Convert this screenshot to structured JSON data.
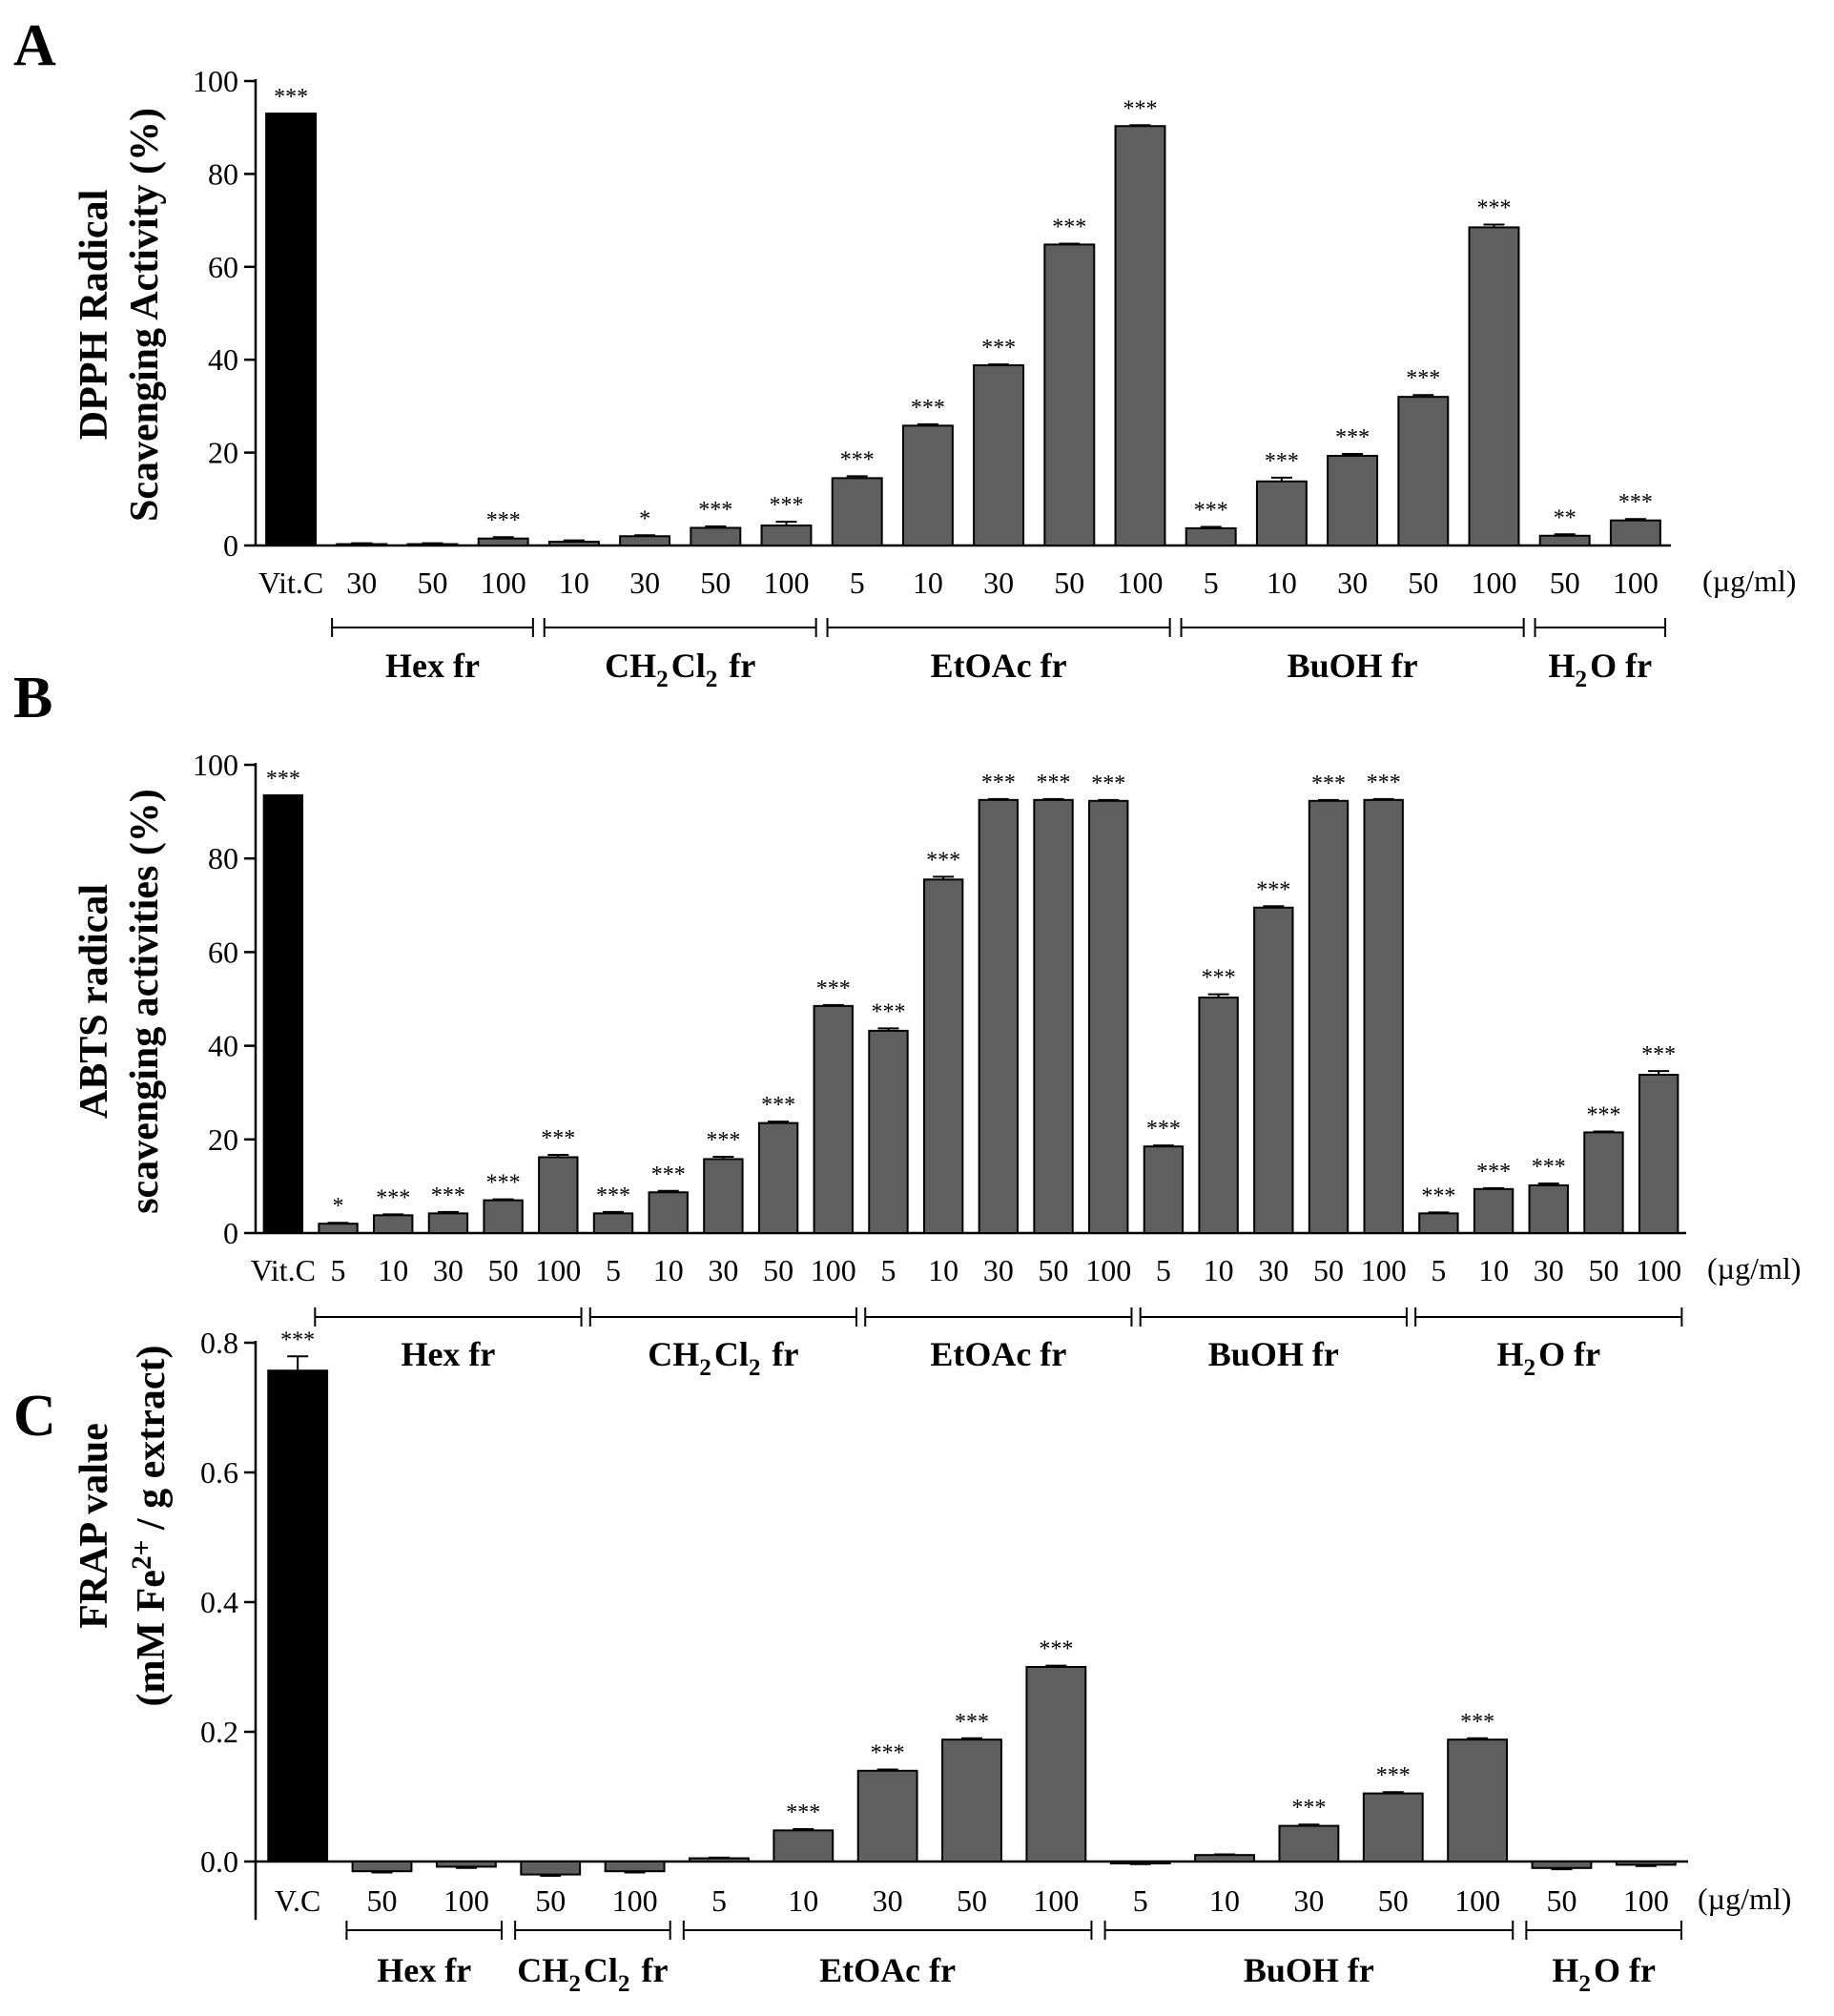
{
  "figure": {
    "title": ""
  },
  "chart_data": [
    {
      "type": "bar",
      "panel": "A",
      "title": "",
      "ylabel": [
        "DPPH Radical",
        "Scavenging Activity (%)"
      ],
      "xunit": "(µg/ml)",
      "ylim": [
        0,
        100
      ],
      "yticks": [
        "0",
        "20",
        "40",
        "60",
        "80",
        "100"
      ],
      "categories": [
        "Vit.C",
        "30",
        "50",
        "100",
        "10",
        "30",
        "50",
        "100",
        "5",
        "10",
        "30",
        "50",
        "100",
        "5",
        "10",
        "30",
        "50",
        "100",
        "50",
        "100"
      ],
      "values": [
        93,
        0.3,
        0.3,
        1.5,
        0.8,
        2,
        3.8,
        4.3,
        14.5,
        25.8,
        38.8,
        64.8,
        90.3,
        3.7,
        13.8,
        19.3,
        32,
        68.5,
        2.1,
        5.4
      ],
      "errors": [
        0,
        0.2,
        0.2,
        0.3,
        0.3,
        0.2,
        0.3,
        0.8,
        0.4,
        0.3,
        0.2,
        0.2,
        0.2,
        0.3,
        0.8,
        0.4,
        0.4,
        0.6,
        0.3,
        0.3
      ],
      "significance": [
        "***",
        "",
        "",
        "***",
        "",
        "*",
        "***",
        "***",
        "***",
        "***",
        "***",
        "***",
        "***",
        "***",
        "***",
        "***",
        "***",
        "***",
        "**",
        "***"
      ],
      "highlight_index": 0,
      "groups": [
        {
          "label": "Hex fr",
          "start": 1,
          "end": 3
        },
        {
          "label": "CH2Cl2 fr",
          "start": 4,
          "end": 7
        },
        {
          "label": "EtOAc fr",
          "start": 8,
          "end": 12
        },
        {
          "label": "BuOH fr",
          "start": 13,
          "end": 17
        },
        {
          "label": "H2O fr",
          "start": 18,
          "end": 19
        }
      ]
    },
    {
      "type": "bar",
      "panel": "B",
      "title": "",
      "ylabel": [
        "ABTS radical",
        "scavenging activities (%)"
      ],
      "xunit": "(µg/ml)",
      "ylim": [
        0,
        100
      ],
      "yticks": [
        "0",
        "20",
        "40",
        "60",
        "80",
        "100"
      ],
      "categories": [
        "Vit.C",
        "5",
        "10",
        "30",
        "50",
        "100",
        "5",
        "10",
        "30",
        "50",
        "100",
        "5",
        "10",
        "30",
        "50",
        "100",
        "5",
        "10",
        "30",
        "50",
        "100",
        "5",
        "10",
        "30",
        "50",
        "100"
      ],
      "values": [
        93.5,
        2,
        3.8,
        4.2,
        7,
        16.2,
        4.2,
        8.7,
        15.8,
        23.5,
        48.5,
        43.2,
        75.5,
        92.5,
        92.5,
        92.3,
        18.5,
        50.3,
        69.5,
        92.3,
        92.5,
        4.2,
        9.4,
        10.2,
        21.5,
        33.8
      ],
      "errors": [
        0,
        0.2,
        0.2,
        0.3,
        0.2,
        0.5,
        0.3,
        0.3,
        0.5,
        0.3,
        0.2,
        0.5,
        0.6,
        0.2,
        0.2,
        0.2,
        0.2,
        0.7,
        0.3,
        0.2,
        0.2,
        0.2,
        0.2,
        0.4,
        0.2,
        0.8
      ],
      "significance": [
        "***",
        "*",
        "***",
        "***",
        "***",
        "***",
        "***",
        "***",
        "***",
        "***",
        "***",
        "***",
        "***",
        "***",
        "***",
        "***",
        "***",
        "***",
        "***",
        "***",
        "***",
        "***",
        "***",
        "***",
        "***",
        "***"
      ],
      "highlight_index": 0,
      "groups": [
        {
          "label": "Hex fr",
          "start": 1,
          "end": 5
        },
        {
          "label": "CH2Cl2 fr",
          "start": 6,
          "end": 10
        },
        {
          "label": "EtOAc fr",
          "start": 11,
          "end": 15
        },
        {
          "label": "BuOH fr",
          "start": 16,
          "end": 20
        },
        {
          "label": "H2O fr",
          "start": 21,
          "end": 25
        }
      ]
    },
    {
      "type": "bar",
      "panel": "C",
      "title": "",
      "ylabel": [
        "FRAP value",
        "(mM Fe2+ / g extract)"
      ],
      "xunit": "(µg/ml)",
      "ylim": [
        -0.09,
        0.8
      ],
      "yticks": [
        "0.0",
        "0.2",
        "0.4",
        "0.6",
        "0.8"
      ],
      "categories": [
        "V.C",
        "50",
        "100",
        "50",
        "100",
        "5",
        "10",
        "30",
        "50",
        "100",
        "5",
        "10",
        "30",
        "50",
        "100",
        "50",
        "100"
      ],
      "values": [
        0.757,
        -0.015,
        -0.008,
        -0.02,
        -0.015,
        0.005,
        0.048,
        0.14,
        0.188,
        0.3,
        -0.003,
        0.01,
        0.055,
        0.105,
        0.188,
        -0.01,
        -0.005
      ],
      "errors": [
        0.022,
        0.002,
        0.002,
        0.002,
        0.002,
        0.001,
        0.002,
        0.002,
        0.002,
        0.002,
        0.001,
        0.001,
        0.002,
        0.002,
        0.002,
        0.002,
        0.002
      ],
      "significance": [
        "***",
        "",
        "",
        "",
        "",
        "",
        "***",
        "***",
        "***",
        "***",
        "",
        "",
        "***",
        "***",
        "***",
        "",
        ""
      ],
      "highlight_index": 0,
      "groups": [
        {
          "label": "Hex fr",
          "start": 1,
          "end": 2
        },
        {
          "label": "CH2Cl2 fr",
          "start": 3,
          "end": 4
        },
        {
          "label": "EtOAc fr",
          "start": 5,
          "end": 9
        },
        {
          "label": "BuOH fr",
          "start": 10,
          "end": 14
        },
        {
          "label": "H2O fr",
          "start": 15,
          "end": 16
        }
      ]
    }
  ],
  "colors": {
    "control": "#000000",
    "bar": "#5f5f5f",
    "axis": "#000000"
  }
}
